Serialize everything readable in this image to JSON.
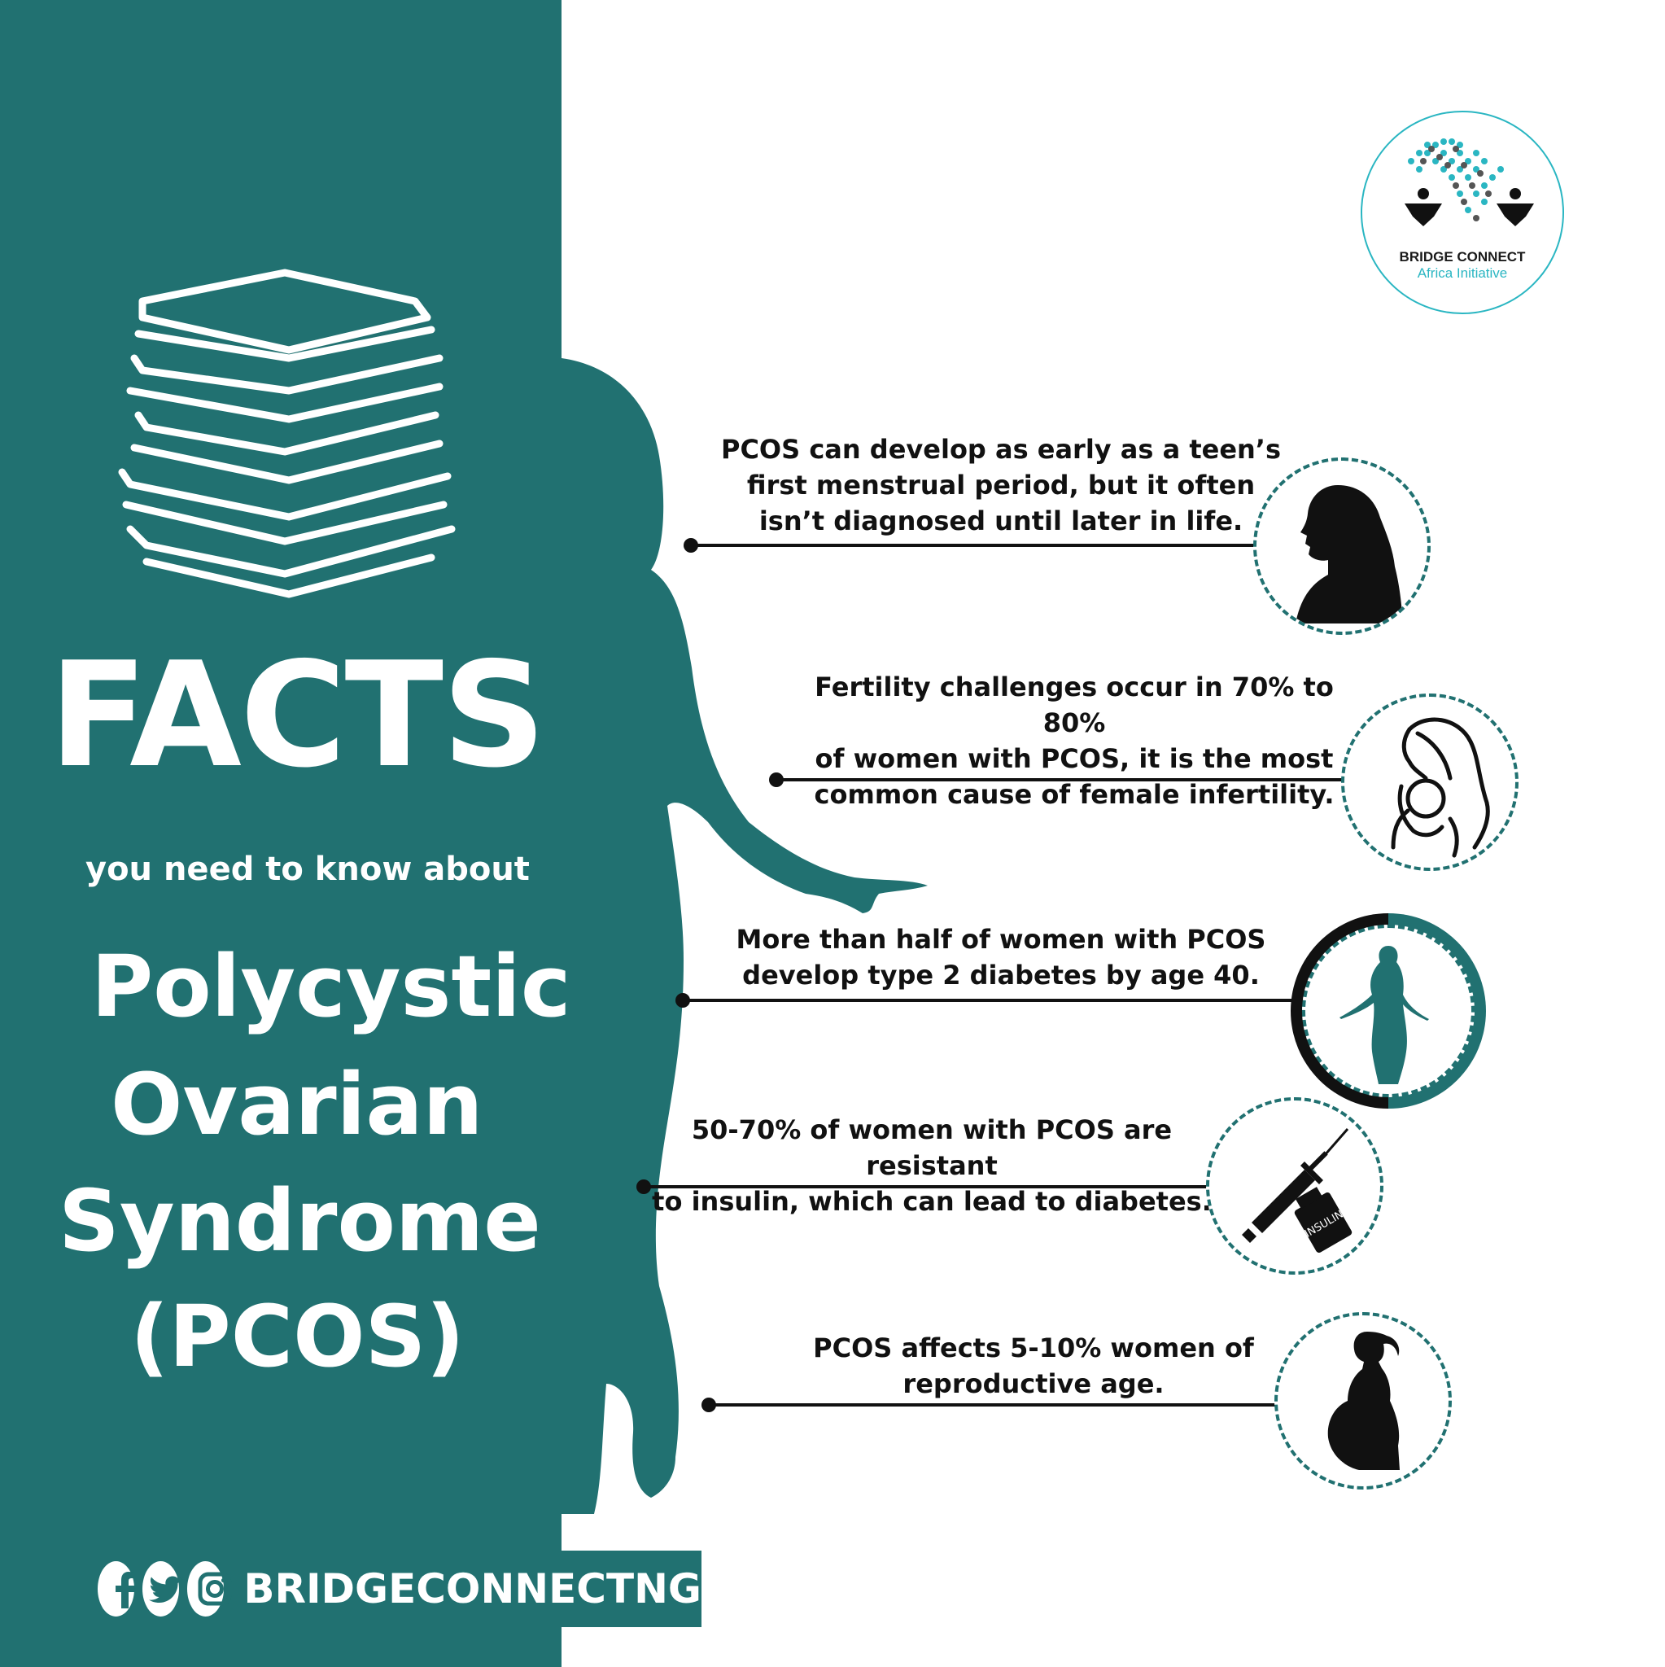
{
  "brand": {
    "logo_name": "BRIDGE CONNECT",
    "logo_sub": "Africa Initiative",
    "social_handle": "BRIDGECONNECTNG",
    "colors": {
      "teal": "#217171",
      "accent": "#2ab6c2",
      "text": "#111111"
    }
  },
  "hero": {
    "title": "FACTS",
    "subtitle": "you need to know about",
    "topic_lines": [
      "Polycystic",
      "Ovarian",
      "Syndrome",
      "(PCOS)"
    ]
  },
  "facts": [
    {
      "lines": [
        "PCOS can develop as early as a teen’s",
        "first menstrual period, but it often",
        "isn’t diagnosed until later in life."
      ],
      "icon": "woman-profile-icon"
    },
    {
      "lines": [
        "Fertility challenges occur in 70% to 80%",
        "of women with PCOS, it is the most",
        "common cause of female infertility."
      ],
      "icon": "mother-child-icon"
    },
    {
      "lines": [
        "More than half of women with PCOS",
        "develop type 2 diabetes by age 40."
      ],
      "icon": "body-weight-icon"
    },
    {
      "lines": [
        "50-70% of women with PCOS are resistant",
        "to insulin, which can lead to diabetes."
      ],
      "icon": "insulin-syringe-icon",
      "icon_label": "INSULIN"
    },
    {
      "lines": [
        "PCOS affects 5-10% women of",
        "reproductive age."
      ],
      "icon": "pregnant-woman-icon"
    }
  ],
  "social_icons": [
    "facebook-icon",
    "twitter-icon",
    "instagram-icon"
  ]
}
